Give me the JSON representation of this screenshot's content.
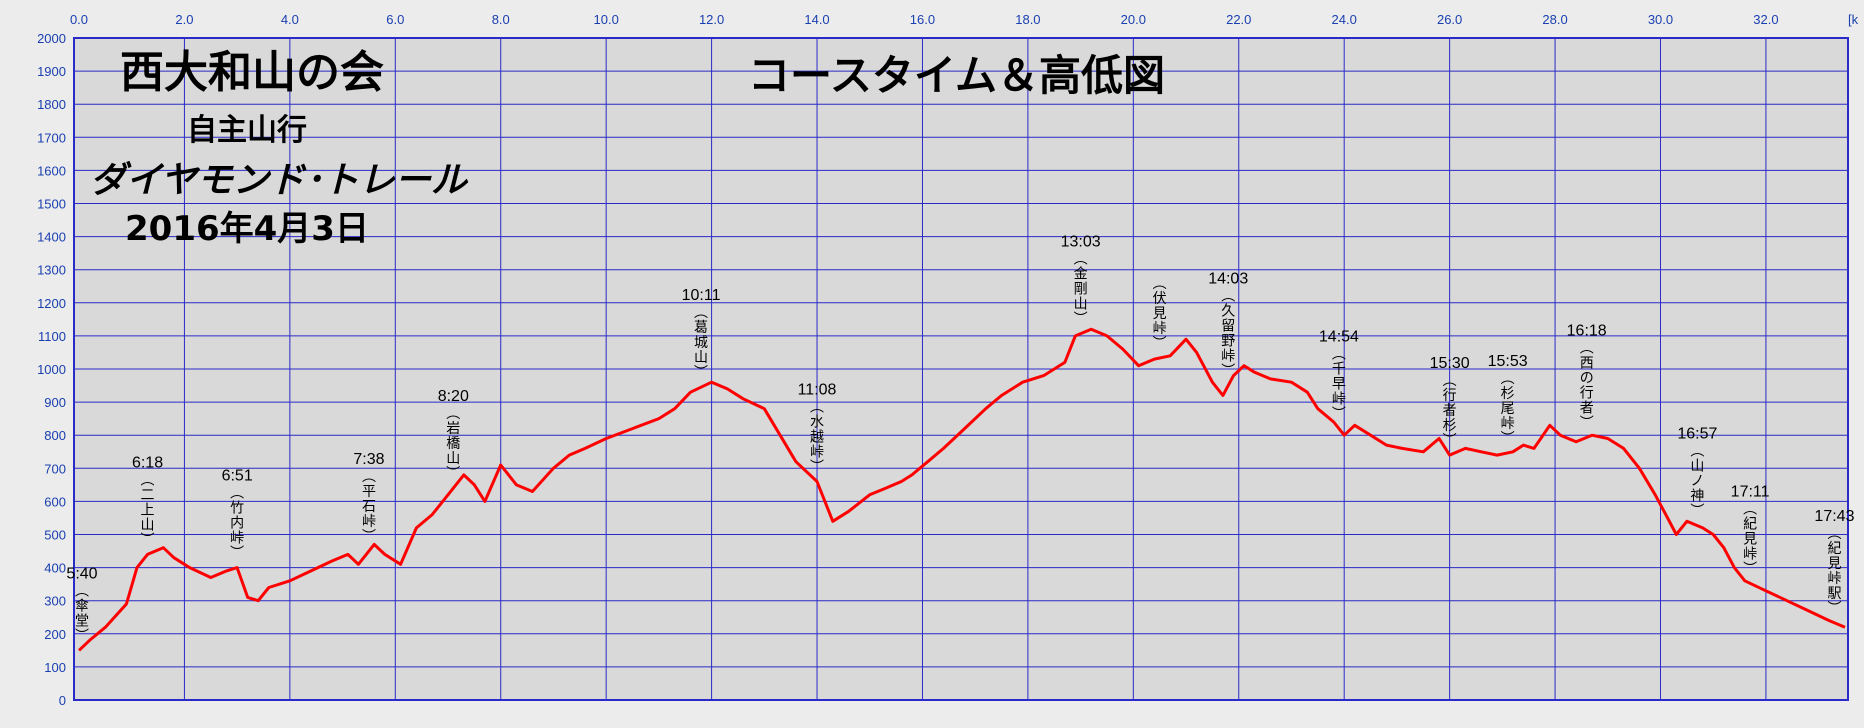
{
  "header": {
    "org": "西大和山の会",
    "title": "コースタイム＆高低図",
    "line1": "自主山行",
    "line2": "ダイヤモンド･トレール",
    "date": "2016年4月3日"
  },
  "x_unit_label": "[k",
  "chart_data": {
    "type": "line",
    "xlim": [
      0,
      33.5
    ],
    "ylim": [
      0,
      2000
    ],
    "x_ticks": [
      "0.0",
      "2.0",
      "4.0",
      "6.0",
      "8.0",
      "10.0",
      "12.0",
      "14.0",
      "16.0",
      "18.0",
      "20.0",
      "22.0",
      "24.0",
      "26.0",
      "28.0",
      "30.0",
      "32.0"
    ],
    "y_ticks": [
      "0",
      "100",
      "200",
      "300",
      "400",
      "500",
      "600",
      "700",
      "800",
      "900",
      "1000",
      "1100",
      "1200",
      "1300",
      "1400",
      "1500",
      "1600",
      "1700",
      "1800",
      "1900",
      "2000"
    ],
    "grid": true,
    "series": [
      {
        "color": "#ff0000",
        "x": [
          0.0,
          0.2,
          0.5,
          0.9,
          1.1,
          1.3,
          1.6,
          1.8,
          2.1,
          2.5,
          2.8,
          3.0,
          3.2,
          3.4,
          3.6,
          4.0,
          4.4,
          4.8,
          5.1,
          5.3,
          5.6,
          5.8,
          6.1,
          6.4,
          6.7,
          7.0,
          7.3,
          7.5,
          7.7,
          8.0,
          8.3,
          8.6,
          9.0,
          9.3,
          9.6,
          10.0,
          10.5,
          11.0,
          11.3,
          11.6,
          12.0,
          12.3,
          12.6,
          13.0,
          13.3,
          13.6,
          14.0,
          14.3,
          14.6,
          15.0,
          15.3,
          15.6,
          15.8,
          16.1,
          16.4,
          16.8,
          17.2,
          17.5,
          17.9,
          18.3,
          18.7,
          18.9,
          19.2,
          19.5,
          19.8,
          20.1,
          20.4,
          20.7,
          21.0,
          21.2,
          21.5,
          21.7,
          21.9,
          22.1,
          22.3,
          22.6,
          23.0,
          23.3,
          23.5,
          23.8,
          24.0,
          24.2,
          24.5,
          24.8,
          25.1,
          25.5,
          25.8,
          26.0,
          26.3,
          26.6,
          26.9,
          27.2,
          27.4,
          27.6,
          27.9,
          28.1,
          28.4,
          28.7,
          29.0,
          29.3,
          29.6,
          29.9,
          30.1,
          30.3,
          30.5,
          30.8,
          31.0,
          31.2,
          31.4,
          31.6,
          32.0,
          32.4,
          32.8,
          33.2,
          33.5
        ],
        "y": [
          150,
          180,
          220,
          290,
          400,
          440,
          460,
          430,
          400,
          370,
          390,
          400,
          310,
          300,
          340,
          360,
          390,
          420,
          440,
          410,
          470,
          440,
          410,
          520,
          560,
          620,
          680,
          650,
          600,
          710,
          650,
          630,
          700,
          740,
          760,
          790,
          820,
          850,
          880,
          930,
          960,
          940,
          910,
          880,
          800,
          720,
          660,
          540,
          570,
          620,
          640,
          660,
          680,
          720,
          760,
          820,
          880,
          920,
          960,
          980,
          1020,
          1100,
          1120,
          1100,
          1060,
          1010,
          1030,
          1040,
          1090,
          1050,
          960,
          920,
          980,
          1010,
          990,
          970,
          960,
          930,
          880,
          840,
          800,
          830,
          800,
          770,
          760,
          750,
          790,
          740,
          760,
          750,
          740,
          750,
          770,
          760,
          830,
          800,
          780,
          800,
          790,
          760,
          700,
          620,
          560,
          500,
          540,
          520,
          500,
          460,
          400,
          360,
          330,
          300,
          270,
          240,
          220
        ]
      }
    ],
    "annotations": [
      {
        "x": 0.0,
        "time": "5:40",
        "place": "傘堂"
      },
      {
        "x": 1.3,
        "time": "6:18",
        "place": "二上山"
      },
      {
        "x": 3.0,
        "time": "6:51",
        "place": "竹内峠"
      },
      {
        "x": 5.5,
        "time": "7:38",
        "place": "平石峠"
      },
      {
        "x": 7.1,
        "time": "8:20",
        "place": "岩橋山"
      },
      {
        "x": 11.8,
        "time": "10:11",
        "place": "葛城山"
      },
      {
        "x": 14.0,
        "time": "11:08",
        "place": "水越峠"
      },
      {
        "x": 19.0,
        "time": "13:03",
        "place": "金剛山"
      },
      {
        "x": 20.5,
        "time": "",
        "place": "伏見峠"
      },
      {
        "x": 21.8,
        "time": "14:03",
        "place": "久留野峠"
      },
      {
        "x": 23.9,
        "time": "14:54",
        "place": "千早峠"
      },
      {
        "x": 26.0,
        "time": "15:30",
        "place": "行者杉"
      },
      {
        "x": 27.1,
        "time": "15:53",
        "place": "杉尾峠"
      },
      {
        "x": 28.6,
        "time": "16:18",
        "place": "西の行者"
      },
      {
        "x": 30.7,
        "time": "16:57",
        "place": "山ノ神"
      },
      {
        "x": 31.7,
        "time": "17:11",
        "place": "紀見峠"
      },
      {
        "x": 33.3,
        "time": "17:43",
        "place": "紀見峠駅"
      }
    ]
  }
}
